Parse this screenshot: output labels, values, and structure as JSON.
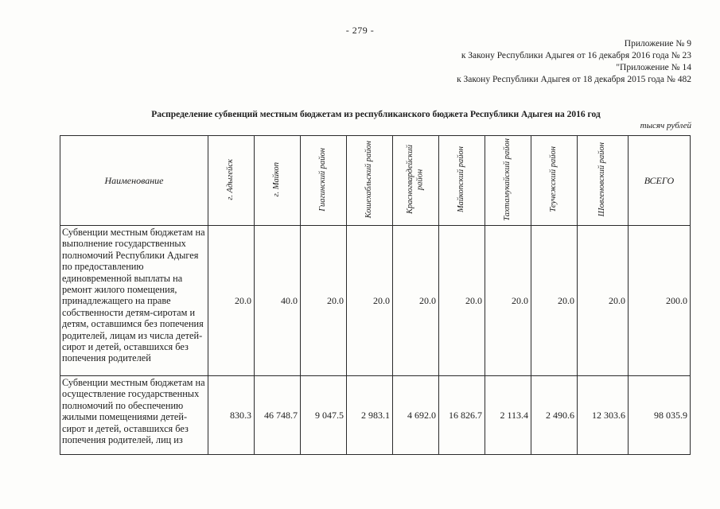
{
  "page": {
    "page_number": "- 279 -",
    "header_lines": [
      "Приложение № 9",
      "к Закону Республики Адыгея от 16 декабря 2016 года № 23",
      "\"Приложение № 14",
      "к Закону Республики Адыгея от 18 декабря 2015 года № 482"
    ],
    "title": "Распределение субвенций местным бюджетам из республиканского бюджета Республики Адыгея на 2016 год",
    "units": "тысяч рублей"
  },
  "table": {
    "name_header": "Наименование",
    "columns": [
      "г. Адыгейск",
      "г. Майкоп",
      "Гиагинский район",
      "Кошехабльский район",
      "Красногвардейский район",
      "Майкопский район",
      "Тахтамукайский район",
      "Теучежский район",
      "Шовгеновский район",
      "ВСЕГО"
    ],
    "rows": [
      {
        "name": "Субвенции местным бюджетам на выполнение государственных полномочий Республики Адыгея по предоставлению единовременной выплаты на ремонт жилого помещения, принадлежащего на праве собственности детям-сиротам и детям, оставшимся без попечения родителей, лицам из числа детей-сирот и детей, оставшихся без попечения родителей",
        "values": [
          "20.0",
          "40.0",
          "20.0",
          "20.0",
          "20.0",
          "20.0",
          "20.0",
          "20.0",
          "20.0",
          "200.0"
        ]
      },
      {
        "name": "Субвенции местным бюджетам на осуществление государственных полномочий по обеспечению жилыми помещениями детей-сирот и детей, оставшихся без попечения родителей, лиц из",
        "values": [
          "830.3",
          "46 748.7",
          "9 047.5",
          "2 983.1",
          "4 692.0",
          "16 826.7",
          "2 113.4",
          "2 490.6",
          "12 303.6",
          "98 035.9"
        ]
      }
    ]
  }
}
